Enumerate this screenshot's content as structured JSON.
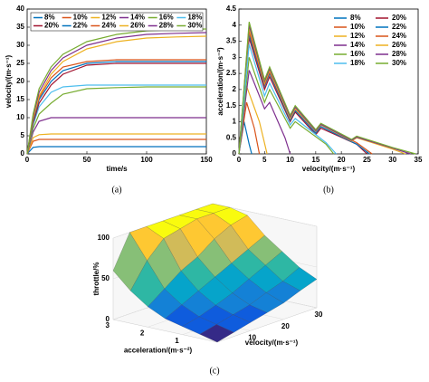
{
  "chart_data": [
    {
      "type": "line",
      "xlabel": "time/s",
      "ylabel": "velocity/(m·s⁻¹)",
      "caption": "(a)",
      "xlim": [
        0,
        150
      ],
      "xticks": [
        0,
        50,
        100,
        150
      ],
      "ylim": [
        0,
        40
      ],
      "yticks": [
        0,
        5,
        10,
        15,
        20,
        25,
        30,
        35,
        40
      ],
      "legend": "top",
      "legend_columns": 6,
      "x": [
        0,
        5,
        10,
        20,
        30,
        50,
        75,
        100,
        125,
        150
      ],
      "series": [
        {
          "name": "8%",
          "color": "#0072bd",
          "values": [
            0,
            1.8,
            2,
            2,
            2,
            2,
            2,
            2,
            2,
            2
          ]
        },
        {
          "name": "10%",
          "color": "#d95319",
          "values": [
            0,
            3.5,
            4,
            4,
            4,
            4,
            4,
            4,
            4,
            4
          ]
        },
        {
          "name": "12%",
          "color": "#edb120",
          "values": [
            0,
            4.5,
            5.3,
            5.5,
            5.5,
            5.5,
            5.5,
            5.5,
            5.5,
            5.5
          ]
        },
        {
          "name": "14%",
          "color": "#7e2f8e",
          "values": [
            0,
            6,
            9,
            10,
            10,
            10,
            10,
            10,
            10,
            10
          ]
        },
        {
          "name": "16%",
          "color": "#77ac30",
          "values": [
            0,
            7,
            11,
            14,
            16.5,
            18,
            18.3,
            18.5,
            18.5,
            18.5
          ]
        },
        {
          "name": "18%",
          "color": "#4dbeee",
          "values": [
            0,
            8,
            13,
            17,
            18.5,
            19,
            19,
            19,
            19,
            19
          ]
        },
        {
          "name": "20%",
          "color": "#a2142f",
          "values": [
            0,
            8.5,
            14,
            19,
            22,
            24.5,
            25,
            25,
            25,
            25
          ]
        },
        {
          "name": "22%",
          "color": "#0072bd",
          "values": [
            0,
            9,
            15,
            20,
            23,
            25,
            25.5,
            25.5,
            25.5,
            25.5
          ]
        },
        {
          "name": "24%",
          "color": "#d95319",
          "values": [
            0,
            9.5,
            15.5,
            21,
            24,
            25.5,
            26,
            26,
            26,
            26
          ]
        },
        {
          "name": "26%",
          "color": "#edb120",
          "values": [
            0,
            10,
            16,
            22,
            25.5,
            29,
            31,
            32,
            32.3,
            32.5
          ]
        },
        {
          "name": "28%",
          "color": "#7e2f8e",
          "values": [
            0,
            10.5,
            17,
            23,
            26.5,
            30,
            32,
            33,
            33.3,
            33.5
          ]
        },
        {
          "name": "30%",
          "color": "#77ac30",
          "values": [
            0,
            11,
            18,
            24,
            27.5,
            31,
            33,
            34,
            34.3,
            34.5
          ]
        }
      ]
    },
    {
      "type": "line",
      "xlabel": "velocity/(m·s⁻¹)",
      "ylabel": "acceleration/(m·s⁻²)",
      "caption": "(b)",
      "xlim": [
        0,
        35
      ],
      "xticks": [
        0,
        5,
        10,
        15,
        20,
        25,
        30,
        35
      ],
      "ylim": [
        0,
        4.5
      ],
      "yticks": [
        0,
        0.5,
        1,
        1.5,
        2,
        2.5,
        3,
        3.5,
        4,
        4.5
      ],
      "legend": "upper right",
      "legend_columns": 2,
      "series": [
        {
          "name": "8%",
          "color": "#0072bd",
          "x": [
            0,
            1,
            2,
            2.5
          ],
          "values": [
            0,
            1.0,
            0.3,
            0
          ]
        },
        {
          "name": "20%",
          "color": "#a2142f",
          "x": [
            0,
            2,
            5,
            6,
            10,
            11,
            15,
            16,
            23,
            25
          ],
          "values": [
            0,
            3.6,
            2.0,
            2.4,
            1.0,
            1.3,
            0.6,
            0.8,
            0.3,
            0
          ]
        },
        {
          "name": "10%",
          "color": "#d95319",
          "x": [
            0,
            1.5,
            3,
            4
          ],
          "values": [
            0,
            1.6,
            0.8,
            0
          ]
        },
        {
          "name": "22%",
          "color": "#0072bd",
          "x": [
            0,
            2,
            5,
            6,
            10,
            11,
            15,
            16,
            23,
            25.5
          ],
          "values": [
            0,
            3.7,
            2.1,
            2.5,
            1.05,
            1.35,
            0.65,
            0.85,
            0.3,
            0
          ]
        },
        {
          "name": "12%",
          "color": "#edb120",
          "x": [
            0,
            1.5,
            4,
            5.5
          ],
          "values": [
            0,
            2.1,
            1.0,
            0
          ]
        },
        {
          "name": "24%",
          "color": "#d95319",
          "x": [
            0,
            2,
            5,
            6,
            10,
            11,
            15,
            16,
            23,
            26
          ],
          "values": [
            0,
            3.8,
            2.15,
            2.55,
            1.1,
            1.4,
            0.7,
            0.9,
            0.35,
            0
          ]
        },
        {
          "name": "14%",
          "color": "#7e2f8e",
          "x": [
            0,
            2,
            5,
            6,
            9,
            10
          ],
          "values": [
            0,
            2.6,
            1.4,
            1.6,
            0.5,
            0
          ]
        },
        {
          "name": "26%",
          "color": "#edb120",
          "x": [
            0,
            2,
            5,
            6,
            10,
            11,
            15,
            16,
            22,
            23,
            30,
            32.5
          ],
          "values": [
            0,
            3.9,
            2.2,
            2.6,
            1.1,
            1.4,
            0.7,
            0.9,
            0.4,
            0.5,
            0.15,
            0
          ]
        },
        {
          "name": "16%",
          "color": "#77ac30",
          "x": [
            0,
            2,
            5,
            6,
            10,
            11,
            17,
            18.5
          ],
          "values": [
            0,
            3.0,
            1.6,
            2.0,
            0.8,
            1.0,
            0.3,
            0
          ]
        },
        {
          "name": "28%",
          "color": "#7e2f8e",
          "x": [
            0,
            2,
            5,
            6,
            10,
            11,
            15,
            16,
            22,
            23,
            30,
            33.5
          ],
          "values": [
            0,
            4.0,
            2.25,
            2.65,
            1.15,
            1.45,
            0.72,
            0.92,
            0.42,
            0.52,
            0.18,
            0
          ]
        },
        {
          "name": "18%",
          "color": "#4dbeee",
          "x": [
            0,
            2,
            5,
            6,
            10,
            11,
            17,
            19
          ],
          "values": [
            0,
            3.4,
            1.8,
            2.2,
            0.9,
            1.1,
            0.35,
            0
          ]
        },
        {
          "name": "30%",
          "color": "#77ac30",
          "x": [
            0,
            2,
            5,
            6,
            10,
            11,
            15,
            16,
            22,
            23,
            30,
            34.5
          ],
          "values": [
            0,
            4.1,
            2.3,
            2.7,
            1.2,
            1.5,
            0.75,
            0.95,
            0.45,
            0.55,
            0.2,
            0
          ]
        }
      ]
    },
    {
      "type": "surface",
      "xlabel": "velocity/(m·s⁻¹)",
      "ylabel": "acceleration/(m·s⁻²)",
      "zlabel": "throttle/%",
      "caption": "(c)",
      "xlim": [
        0,
        30
      ],
      "xticks": [
        10,
        20,
        30
      ],
      "ylim": [
        0,
        3
      ],
      "yticks": [
        1,
        2,
        3
      ],
      "zlim": [
        0,
        100
      ],
      "zticks": [
        0,
        50,
        100
      ],
      "colormap": [
        "#352a87",
        "#0f5cdd",
        "#1481d6",
        "#06a4ca",
        "#2eb7a4",
        "#87bf77",
        "#d1bb59",
        "#fec832",
        "#f9fb0e"
      ],
      "x": [
        0,
        5,
        10,
        15,
        20,
        25,
        30
      ],
      "y": [
        0,
        0.5,
        1,
        1.5,
        2,
        2.5,
        3
      ],
      "z": [
        [
          0,
          5,
          10,
          15,
          20,
          28,
          35
        ],
        [
          5,
          10,
          15,
          20,
          28,
          35,
          45
        ],
        [
          10,
          15,
          22,
          30,
          40,
          50,
          60
        ],
        [
          15,
          25,
          35,
          45,
          55,
          65,
          75
        ],
        [
          25,
          40,
          55,
          65,
          80,
          90,
          95
        ],
        [
          40,
          70,
          90,
          95,
          100,
          100,
          100
        ],
        [
          60,
          100,
          100,
          100,
          100,
          100,
          100
        ]
      ]
    }
  ]
}
